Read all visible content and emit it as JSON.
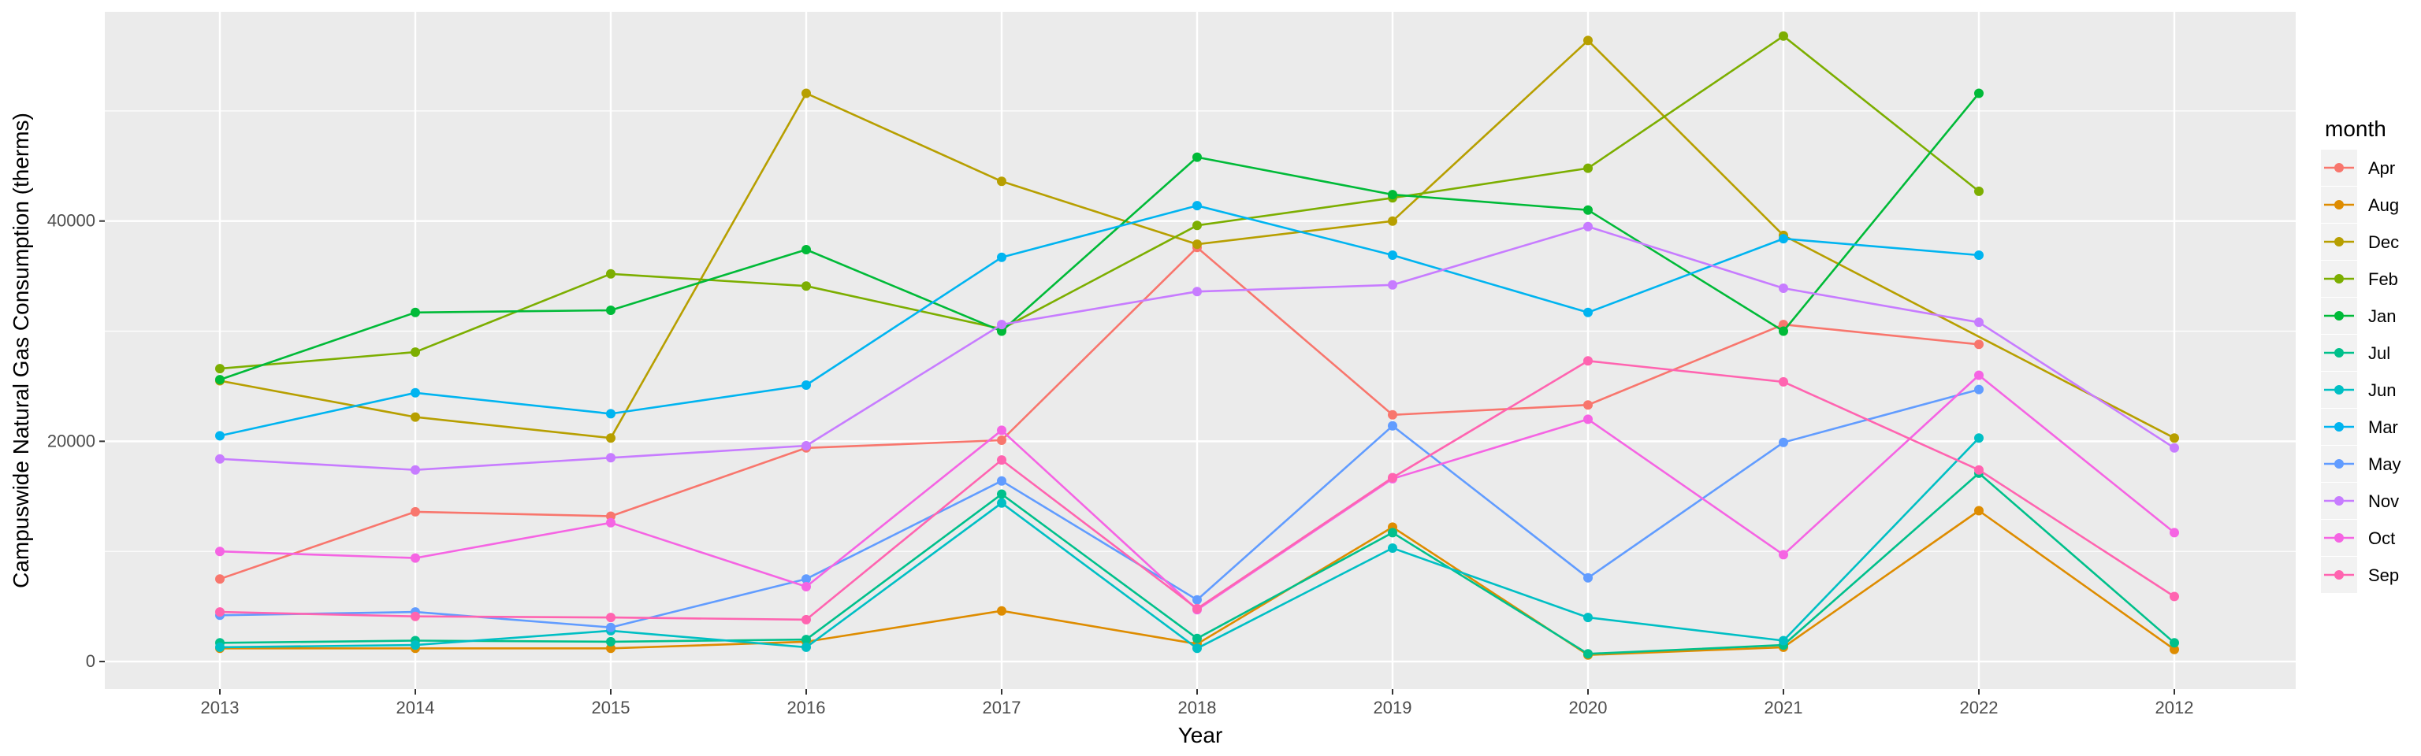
{
  "chart_data": {
    "type": "line",
    "xlabel": "Year",
    "ylabel": "Campuswide Natural Gas Consumption (therms)",
    "legend_title": "month",
    "legend_position": "right",
    "grid": true,
    "ylim": [
      -2500,
      59000
    ],
    "y_ticks": [
      0,
      20000,
      40000
    ],
    "y_tick_labels": [
      "0",
      "20000",
      "40000"
    ],
    "categories": [
      "2013",
      "2014",
      "2015",
      "2016",
      "2017",
      "2018",
      "2019",
      "2020",
      "2021",
      "2022",
      "2012"
    ],
    "series": [
      {
        "name": "Apr",
        "color": "#F8766D",
        "values": [
          7500,
          13600,
          13200,
          19400,
          20100,
          37600,
          22400,
          23300,
          30600,
          28800,
          null
        ]
      },
      {
        "name": "Aug",
        "color": "#DE8C00",
        "values": [
          1200,
          1200,
          1200,
          1800,
          4600,
          1600,
          12200,
          600,
          1300,
          13700,
          1100
        ]
      },
      {
        "name": "Dec",
        "color": "#B79F00",
        "values": [
          25500,
          22200,
          20300,
          51600,
          43600,
          37900,
          40000,
          56400,
          38700,
          null,
          20300
        ]
      },
      {
        "name": "Feb",
        "color": "#7CAE00",
        "values": [
          26600,
          28100,
          35200,
          34100,
          30200,
          39600,
          42100,
          44800,
          56800,
          42700,
          null
        ]
      },
      {
        "name": "Jan",
        "color": "#00BA38",
        "values": [
          25600,
          31700,
          31900,
          37400,
          30000,
          45800,
          42400,
          41000,
          30000,
          51600,
          null
        ]
      },
      {
        "name": "Jul",
        "color": "#00C08B",
        "values": [
          1700,
          1900,
          1800,
          2000,
          15200,
          2100,
          11700,
          700,
          1500,
          17100,
          1700
        ]
      },
      {
        "name": "Jun",
        "color": "#00BFC4",
        "values": [
          1300,
          1500,
          2800,
          1300,
          14400,
          1200,
          10300,
          4000,
          1900,
          20300,
          null
        ]
      },
      {
        "name": "Mar",
        "color": "#00B4F0",
        "values": [
          20500,
          24400,
          22500,
          25100,
          36700,
          41400,
          36900,
          31700,
          38400,
          36900,
          null
        ]
      },
      {
        "name": "May",
        "color": "#619CFF",
        "values": [
          4200,
          4500,
          3100,
          7500,
          16400,
          5600,
          21400,
          7600,
          19900,
          24700,
          null
        ]
      },
      {
        "name": "Nov",
        "color": "#C77CFF",
        "values": [
          18400,
          17400,
          18500,
          19600,
          30600,
          33600,
          34200,
          39500,
          33900,
          30800,
          19400
        ]
      },
      {
        "name": "Oct",
        "color": "#F564E3",
        "values": [
          10000,
          9400,
          12600,
          6800,
          21000,
          4700,
          16600,
          22000,
          9700,
          26000,
          11700
        ]
      },
      {
        "name": "Sep",
        "color": "#FF64B0",
        "values": [
          4500,
          4100,
          4000,
          3800,
          18300,
          4800,
          16700,
          27300,
          25400,
          17400,
          5900
        ]
      }
    ]
  }
}
